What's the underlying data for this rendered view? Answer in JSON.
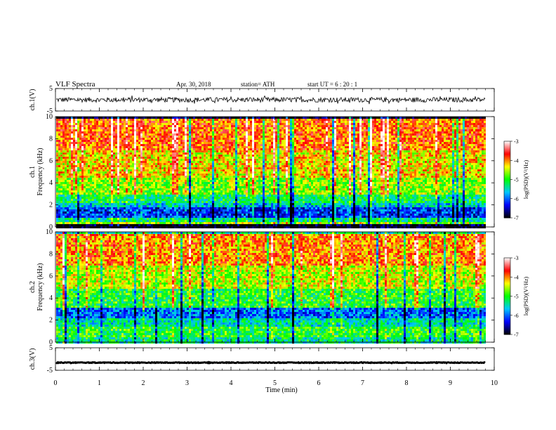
{
  "header": {
    "title": "VLF  Spectra",
    "date": "Apr. 30, 2018",
    "station": "station= ATH",
    "start": "start  UT  =   6  : 20 : 1"
  },
  "chart_data": {
    "type": "heatmap",
    "xlabel": "Time  (min)",
    "xlim": [
      0,
      10
    ],
    "x_ticks": [
      "0",
      "1",
      "2",
      "3",
      "4",
      "5",
      "6",
      "7",
      "8",
      "9",
      "10"
    ],
    "data_end_min": 9.8,
    "panels": [
      {
        "name": "ch.1(V)",
        "kind": "waveform",
        "ylabel": "ch.1(V)",
        "ylim": [
          -5,
          5
        ],
        "y_ticks": [
          "5",
          "-5"
        ],
        "center_value": 0,
        "amplitude": 1.1
      },
      {
        "name": "ch.1 spectrogram",
        "kind": "spectrogram",
        "ylabel_1": "ch.1",
        "ylabel_2": "Frequency  (kHz)",
        "ylim": [
          0,
          10
        ],
        "y_ticks": [
          "0",
          "2",
          "4",
          "6",
          "8",
          "10"
        ],
        "z_label": "log(PSD)(V²/Hz)",
        "z_range": [
          -7,
          -3
        ],
        "z_ticks": [
          "-3",
          "-4",
          "-5",
          "-6",
          "-7"
        ],
        "bands_khz": [
          {
            "from": 0.0,
            "to": 0.3,
            "level": -7
          },
          {
            "from": 0.3,
            "to": 0.5,
            "level": -4.6
          },
          {
            "from": 0.5,
            "to": 1.0,
            "level": -5.3
          },
          {
            "from": 1.0,
            "to": 1.8,
            "level": -6.2
          },
          {
            "from": 1.8,
            "to": 2.3,
            "level": -5.6
          },
          {
            "from": 2.3,
            "to": 3.0,
            "level": -5.2
          },
          {
            "from": 3.0,
            "to": 4.5,
            "level": -4.7
          },
          {
            "from": 4.5,
            "to": 7.0,
            "level": -4.3
          },
          {
            "from": 7.0,
            "to": 10.0,
            "level": -3.9
          }
        ]
      },
      {
        "name": "ch.2 spectrogram",
        "kind": "spectrogram",
        "ylabel_1": "ch.2",
        "ylabel_2": "Frequency  (kHz)",
        "ylim": [
          0,
          10
        ],
        "y_ticks": [
          "0",
          "2",
          "4",
          "6",
          "8",
          "10"
        ],
        "z_label": "log(PSD)(V²/Hz)",
        "z_range": [
          -7,
          -3
        ],
        "z_ticks": [
          "-3",
          "-4",
          "-5",
          "-6",
          "-7"
        ],
        "bands_khz": [
          {
            "from": 0.0,
            "to": 0.5,
            "level": -5.3
          },
          {
            "from": 0.5,
            "to": 1.5,
            "level": -5.0
          },
          {
            "from": 1.5,
            "to": 2.3,
            "level": -5.4
          },
          {
            "from": 2.3,
            "to": 3.2,
            "level": -6.0
          },
          {
            "from": 3.2,
            "to": 5.0,
            "level": -5.0
          },
          {
            "from": 5.0,
            "to": 7.0,
            "level": -4.5
          },
          {
            "from": 7.0,
            "to": 10.0,
            "level": -4.0
          }
        ]
      },
      {
        "name": "ch.3(V)",
        "kind": "waveform",
        "ylabel": "ch.3(V)",
        "ylim": [
          -5,
          5
        ],
        "y_ticks": [
          "5",
          "-5"
        ],
        "center_value": -1.6,
        "amplitude": 0.15
      }
    ]
  },
  "colors": {
    "colormap": [
      "#000000",
      "#0000ff",
      "#00c8ff",
      "#00ff00",
      "#ffff00",
      "#ff0000",
      "#ffffff"
    ],
    "line": "#000000"
  }
}
